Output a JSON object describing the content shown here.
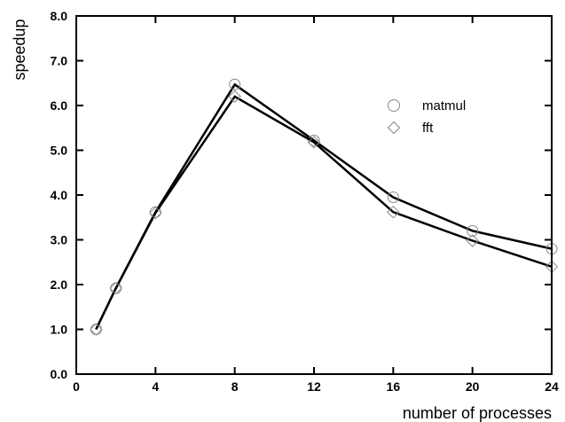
{
  "chart_data": {
    "type": "line",
    "title": "",
    "xlabel": "number of processes",
    "ylabel": "speedup",
    "xlim": [
      0,
      24
    ],
    "ylim": [
      0.0,
      8.0
    ],
    "x_ticks": [
      "0",
      "4",
      "8",
      "12",
      "16",
      "20",
      "24"
    ],
    "y_ticks": [
      "0.0",
      "1.0",
      "2.0",
      "3.0",
      "4.0",
      "5.0",
      "6.0",
      "7.0",
      "8.0"
    ],
    "grid": false,
    "legend_position": "top-right",
    "series": [
      {
        "name": "matmul",
        "marker": "circle",
        "x": [
          1,
          2,
          4,
          8,
          12,
          16,
          20,
          24
        ],
        "y": [
          1.0,
          1.92,
          3.62,
          6.47,
          5.22,
          3.95,
          3.2,
          2.8
        ]
      },
      {
        "name": "fft",
        "marker": "diamond",
        "x": [
          1,
          2,
          4,
          8,
          12,
          16,
          20,
          24
        ],
        "y": [
          1.0,
          1.92,
          3.6,
          6.2,
          5.18,
          3.62,
          2.98,
          2.4
        ]
      }
    ]
  }
}
